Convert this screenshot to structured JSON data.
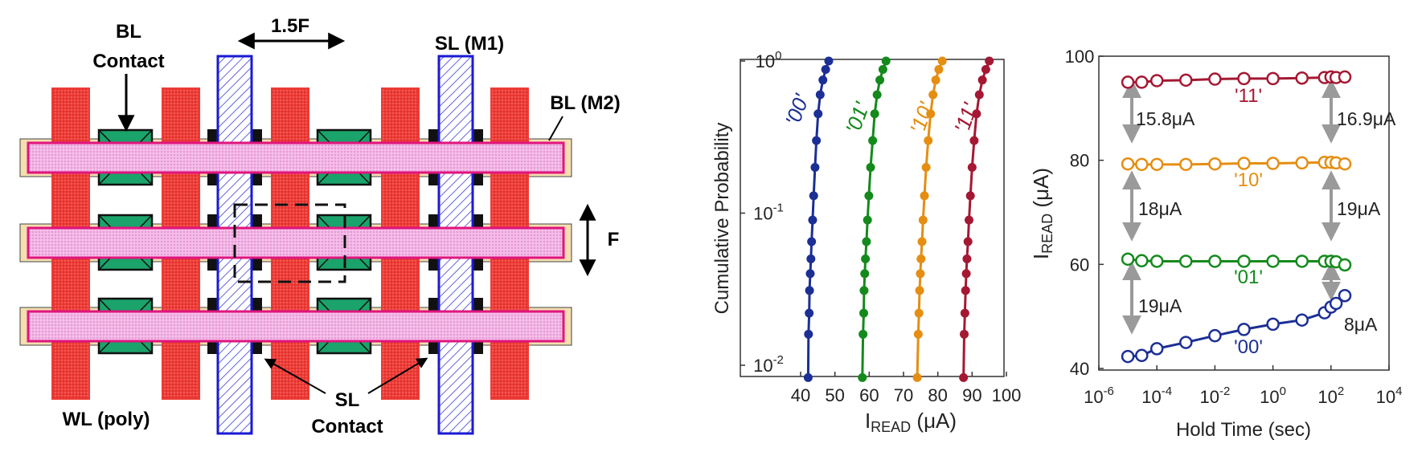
{
  "layout": {
    "labels": {
      "bl_contact_line1": "BL",
      "bl_contact_line2": "Contact",
      "pitch": "1.5F",
      "sl_m1": "SL (M1)",
      "bl_m2": "BL (M2)",
      "f": "F",
      "sl_contact_line1": "SL",
      "sl_contact_line2": "Contact",
      "wl_poly": "WL (poly)"
    },
    "colors": {
      "wl_poly": "#ee3b36",
      "bl_m2": "#f0a8e0",
      "bl_m2_edge": "#e0157e",
      "bl_underlay": "#f5deb0",
      "sl_m1_edge": "#1a1ad4",
      "contact": "#1aa36a"
    }
  },
  "chart_data": [
    {
      "type": "scatter",
      "title": "",
      "xlabel": "I",
      "xlabel_sub": "READ",
      "xlabel_unit": " (μA)",
      "ylabel": "Cumulative Probability",
      "y_scale": "log",
      "xlim": [
        35,
        100
      ],
      "ylim": [
        0.008,
        1
      ],
      "xticks": [
        "40",
        "50",
        "60",
        "70",
        "80",
        "90",
        "100"
      ],
      "xtick_values": [
        40,
        50,
        60,
        70,
        80,
        90,
        100
      ],
      "yticks": [
        {
          "base": "10",
          "exp": "0",
          "value": 1
        },
        {
          "base": "10",
          "exp": "-1",
          "value": 0.1
        },
        {
          "base": "10",
          "exp": "-2",
          "value": 0.01
        }
      ],
      "series": [
        {
          "name": "'00'",
          "color": "#1c2f95",
          "points": [
            [
              42.2,
              0.0083
            ],
            [
              42.3,
              0.016
            ],
            [
              42.5,
              0.022
            ],
            [
              42.6,
              0.031
            ],
            [
              42.8,
              0.04
            ],
            [
              43.0,
              0.05
            ],
            [
              43.2,
              0.065
            ],
            [
              43.5,
              0.09
            ],
            [
              43.8,
              0.13
            ],
            [
              44.2,
              0.2
            ],
            [
              44.6,
              0.3
            ],
            [
              45.1,
              0.45
            ],
            [
              45.7,
              0.6
            ],
            [
              46.5,
              0.75
            ],
            [
              47.3,
              0.88
            ],
            [
              48.2,
              1.0
            ]
          ]
        },
        {
          "name": "'01'",
          "color": "#148a1c",
          "points": [
            [
              58.0,
              0.0083
            ],
            [
              58.2,
              0.016
            ],
            [
              58.4,
              0.022
            ],
            [
              58.5,
              0.031
            ],
            [
              58.7,
              0.04
            ],
            [
              58.9,
              0.05
            ],
            [
              59.2,
              0.065
            ],
            [
              59.5,
              0.09
            ],
            [
              59.9,
              0.13
            ],
            [
              60.4,
              0.2
            ],
            [
              61.0,
              0.3
            ],
            [
              61.6,
              0.45
            ],
            [
              62.3,
              0.6
            ],
            [
              63.1,
              0.75
            ],
            [
              64.0,
              0.88
            ],
            [
              64.9,
              1.0
            ]
          ]
        },
        {
          "name": "'10'",
          "color": "#e58e12",
          "points": [
            [
              74.0,
              0.0083
            ],
            [
              74.3,
              0.016
            ],
            [
              74.5,
              0.022
            ],
            [
              74.7,
              0.031
            ],
            [
              74.9,
              0.04
            ],
            [
              75.1,
              0.05
            ],
            [
              75.4,
              0.065
            ],
            [
              75.7,
              0.09
            ],
            [
              76.1,
              0.13
            ],
            [
              76.6,
              0.2
            ],
            [
              77.2,
              0.3
            ],
            [
              77.9,
              0.45
            ],
            [
              78.6,
              0.6
            ],
            [
              79.4,
              0.75
            ],
            [
              80.3,
              0.88
            ],
            [
              81.3,
              1.0
            ]
          ]
        },
        {
          "name": "'11'",
          "color": "#a51833",
          "points": [
            [
              87.5,
              0.0083
            ],
            [
              87.7,
              0.016
            ],
            [
              87.9,
              0.022
            ],
            [
              88.1,
              0.031
            ],
            [
              88.3,
              0.04
            ],
            [
              88.5,
              0.05
            ],
            [
              88.8,
              0.065
            ],
            [
              89.1,
              0.09
            ],
            [
              89.5,
              0.13
            ],
            [
              90.0,
              0.2
            ],
            [
              90.6,
              0.3
            ],
            [
              91.3,
              0.45
            ],
            [
              92.1,
              0.6
            ],
            [
              93.0,
              0.75
            ],
            [
              94.0,
              0.88
            ],
            [
              95.0,
              1.0
            ]
          ]
        }
      ]
    },
    {
      "type": "line",
      "title": "",
      "xlabel": "Hold Time (sec)",
      "ylabel": "I",
      "ylabel_sub": "READ",
      "ylabel_unit": " (μA)",
      "x_scale": "log",
      "xlim": [
        1e-06,
        10000.0
      ],
      "ylim": [
        40,
        100
      ],
      "xticks": [
        {
          "base": "10",
          "exp": "-6",
          "value": 1e-06
        },
        {
          "base": "10",
          "exp": "-4",
          "value": 0.0001
        },
        {
          "base": "10",
          "exp": "-2",
          "value": 0.01
        },
        {
          "base": "10",
          "exp": "0",
          "value": 1
        },
        {
          "base": "10",
          "exp": "2",
          "value": 100
        },
        {
          "base": "10",
          "exp": "4",
          "value": 10000.0
        }
      ],
      "yticks": [
        "40",
        "60",
        "80",
        "100"
      ],
      "ytick_values": [
        40,
        60,
        80,
        100
      ],
      "series": [
        {
          "name": "'11'",
          "color": "#a51833",
          "x": [
            1e-05,
            3e-05,
            0.0001,
            0.001,
            0.01,
            0.1,
            1,
            10,
            60,
            100,
            150,
            300
          ],
          "y": [
            95.0,
            95.0,
            95.3,
            95.4,
            95.6,
            95.7,
            95.7,
            95.8,
            95.9,
            96.0,
            95.9,
            96.0
          ]
        },
        {
          "name": "'10'",
          "color": "#e58e12",
          "x": [
            1e-05,
            3e-05,
            0.0001,
            0.001,
            0.01,
            0.1,
            1,
            10,
            60,
            100,
            150,
            300
          ],
          "y": [
            79.3,
            79.2,
            79.2,
            79.2,
            79.3,
            79.4,
            79.4,
            79.5,
            79.6,
            79.6,
            79.5,
            79.3
          ]
        },
        {
          "name": "'01'",
          "color": "#148a1c",
          "x": [
            1e-05,
            3e-05,
            0.0001,
            0.001,
            0.01,
            0.1,
            1,
            10,
            60,
            100,
            150,
            300
          ],
          "y": [
            61.0,
            60.7,
            60.6,
            60.6,
            60.6,
            60.6,
            60.6,
            60.6,
            60.6,
            60.6,
            60.5,
            59.9
          ]
        },
        {
          "name": "'00'",
          "color": "#1c2f95",
          "x": [
            1e-05,
            3e-05,
            0.0001,
            0.001,
            0.01,
            0.1,
            1,
            10,
            60,
            100,
            150,
            300
          ],
          "y": [
            42.3,
            42.5,
            43.8,
            45.0,
            46.3,
            47.5,
            48.5,
            49.3,
            50.7,
            51.8,
            52.5,
            54.0
          ]
        }
      ],
      "annotations": [
        "15.8μA",
        "16.9μA",
        "18μA",
        "19μA",
        "19μA",
        "8μA"
      ]
    }
  ]
}
